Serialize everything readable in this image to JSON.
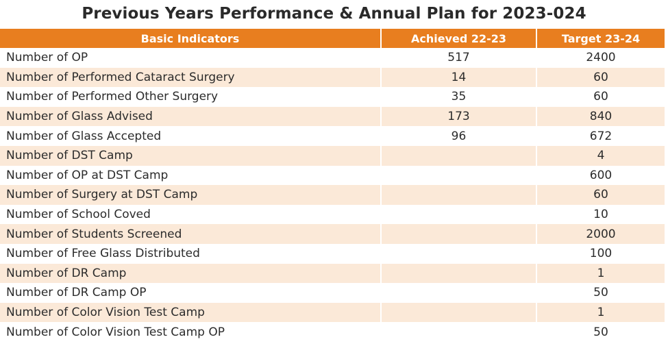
{
  "title": "Previous Years Performance & Annual Plan for 2023-024",
  "table": {
    "headers": [
      "Basic Indicators",
      "Achieved 22-23",
      "Target 23-24"
    ],
    "rows": [
      [
        "Number of OP",
        "517",
        "2400"
      ],
      [
        "Number of Performed Cataract Surgery",
        "14",
        "60"
      ],
      [
        "Number of Performed Other Surgery",
        "35",
        "60"
      ],
      [
        "Number of Glass Advised",
        "173",
        "840"
      ],
      [
        "Number of Glass Accepted",
        "96",
        "672"
      ],
      [
        "Number of DST Camp",
        "",
        "4"
      ],
      [
        "Number of OP at DST Camp",
        "",
        "600"
      ],
      [
        "Number of Surgery at DST Camp",
        "",
        "60"
      ],
      [
        "Number of School Coved",
        "",
        "10"
      ],
      [
        "Number of Students Screened",
        "",
        "2000"
      ],
      [
        "Number of Free Glass Distributed",
        "",
        "100"
      ],
      [
        "Number of DR Camp",
        "",
        "1"
      ],
      [
        "Number of DR Camp OP",
        "",
        "50"
      ],
      [
        "Number of Color Vision Test Camp",
        "",
        "1"
      ],
      [
        "Number of Color Vision Test Camp OP",
        "",
        "50"
      ]
    ]
  },
  "colors": {
    "header_bg": "#e87e1f",
    "alt_row_bg": "#fbe9d8"
  }
}
